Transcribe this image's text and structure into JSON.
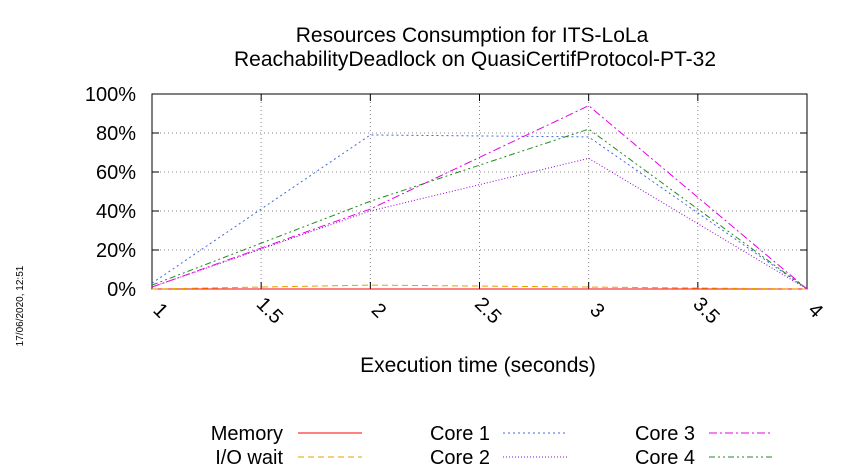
{
  "timestamp": "17/06/2020, 12:51",
  "chart_data": {
    "type": "line",
    "title": "Resources Consumption for ITS-LoLa",
    "subtitle": "ReachabilityDeadlock on QuasiCertifProtocol-PT-32",
    "xlabel": "Execution time (seconds)",
    "ylabel": "",
    "x_ticks": [
      "1",
      "1.5",
      "2",
      "2.5",
      "3",
      "3.5",
      "4"
    ],
    "y_ticks": [
      "0%",
      "20%",
      "40%",
      "60%",
      "80%",
      "100%"
    ],
    "xlim": [
      1,
      4
    ],
    "ylim": [
      0,
      100
    ],
    "grid": true,
    "legend_position": "bottom",
    "x": [
      1,
      2,
      3,
      4
    ],
    "series": [
      {
        "name": "Memory",
        "color": "#ff0000",
        "dash": "solid",
        "values": [
          0,
          0,
          0,
          0
        ]
      },
      {
        "name": "I/O wait",
        "color": "#e6a000",
        "dash": "dashed",
        "values": [
          0,
          2,
          1,
          0
        ]
      },
      {
        "name": "Core 1",
        "color": "#4169e1",
        "dash": "dotted",
        "values": [
          3,
          79,
          78,
          0
        ]
      },
      {
        "name": "Core 2",
        "color": "#9400d3",
        "dash": "dotted-fine",
        "values": [
          1,
          40,
          67,
          0
        ]
      },
      {
        "name": "Core 3",
        "color": "#e600e6",
        "dash": "dash-dot",
        "values": [
          1,
          41,
          94,
          0
        ]
      },
      {
        "name": "Core 4",
        "color": "#228b22",
        "dash": "dash-dot-dot",
        "values": [
          2,
          45,
          82,
          0
        ]
      }
    ]
  }
}
